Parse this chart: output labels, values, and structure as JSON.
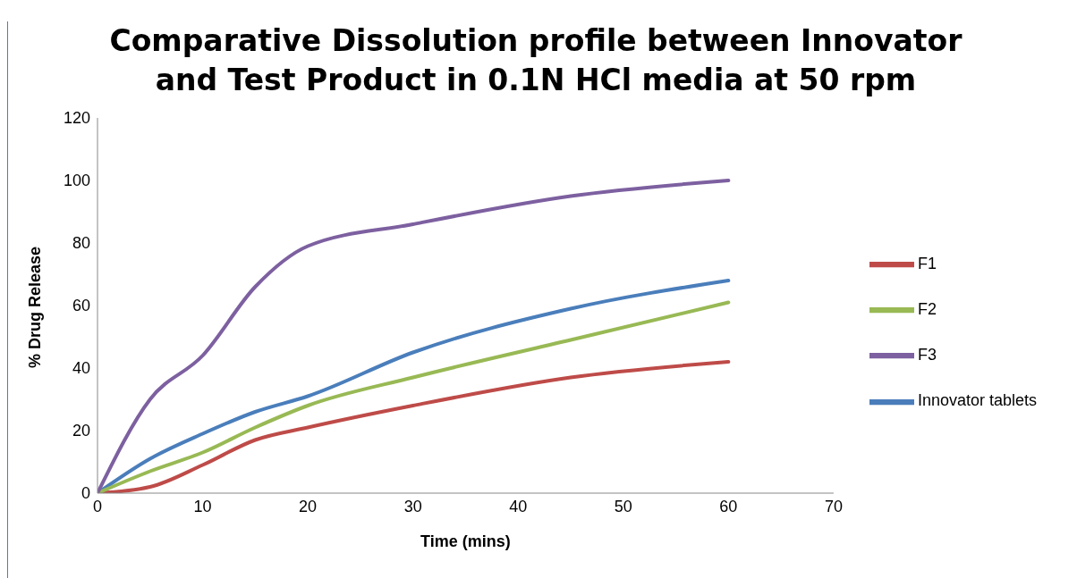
{
  "chart_data": {
    "type": "line",
    "title": "Comparative Dissolution profile between Innovator and Test Product in 0.1N HCl media at 50 rpm",
    "xlabel": "Time (mins)",
    "ylabel": "% Drug Release",
    "x": [
      0,
      5,
      10,
      15,
      20,
      30,
      45,
      60
    ],
    "series": [
      {
        "name": "Innovator tablets",
        "color": "#4a7ebb",
        "values": [
          0,
          11,
          19,
          26,
          31,
          45,
          59,
          68
        ]
      },
      {
        "name": "F1",
        "color": "#be4b48",
        "values": [
          0,
          2,
          9,
          17,
          21,
          28,
          37,
          42
        ]
      },
      {
        "name": "F2",
        "color": "#98b954",
        "values": [
          0,
          7,
          13,
          21,
          28,
          37,
          49,
          61
        ]
      },
      {
        "name": "F3",
        "color": "#7d60a0",
        "values": [
          0,
          30,
          44,
          66,
          79,
          86,
          95,
          100
        ]
      }
    ],
    "xlim": [
      0,
      70
    ],
    "xticks": [
      0,
      10,
      20,
      30,
      40,
      50,
      60,
      70
    ],
    "ylim": [
      0,
      120
    ],
    "yticks": [
      0,
      20,
      40,
      60,
      80,
      100,
      120
    ],
    "grid": false,
    "legend": "right",
    "marker": "none",
    "line_style": "solid"
  }
}
